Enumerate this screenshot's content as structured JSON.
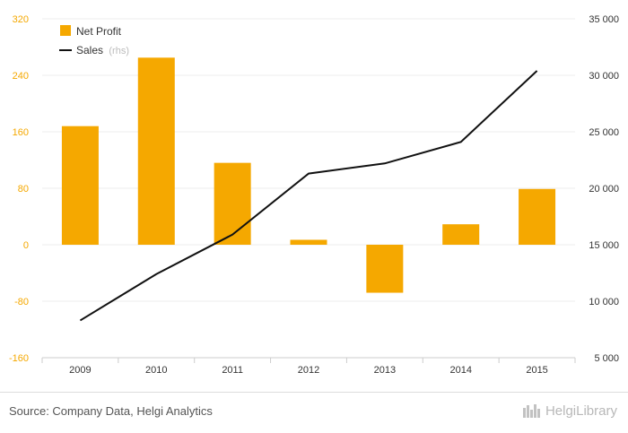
{
  "chart_data": {
    "type": "bar+line",
    "categories": [
      "2009",
      "2010",
      "2011",
      "2012",
      "2013",
      "2014",
      "2015"
    ],
    "series": [
      {
        "name": "Net Profit",
        "axis": "left",
        "type": "bar",
        "color": "#f5a800",
        "values": [
          168,
          265,
          116,
          7,
          -68,
          29,
          79
        ]
      },
      {
        "name": "Sales",
        "axis": "right",
        "type": "line",
        "color": "#111111",
        "values": [
          8300,
          12400,
          15900,
          21300,
          22200,
          24100,
          30400
        ]
      }
    ],
    "y_left": {
      "min": -160,
      "max": 320,
      "ticks": [
        "320",
        "240",
        "160",
        "80",
        "0",
        "-80",
        "-160"
      ]
    },
    "y_right": {
      "min": 5000,
      "max": 35000,
      "ticks": [
        "35 000",
        "30 000",
        "25 000",
        "20 000",
        "15 000",
        "10 000",
        "5 000"
      ]
    },
    "legend": {
      "position": "top-left",
      "items": [
        {
          "label": "Net Profit"
        },
        {
          "label": "Sales",
          "suffix": "(rhs)"
        }
      ]
    }
  },
  "footer": {
    "source": "Source: Company Data, Helgi Analytics",
    "brand": "HelgiLibrary"
  }
}
